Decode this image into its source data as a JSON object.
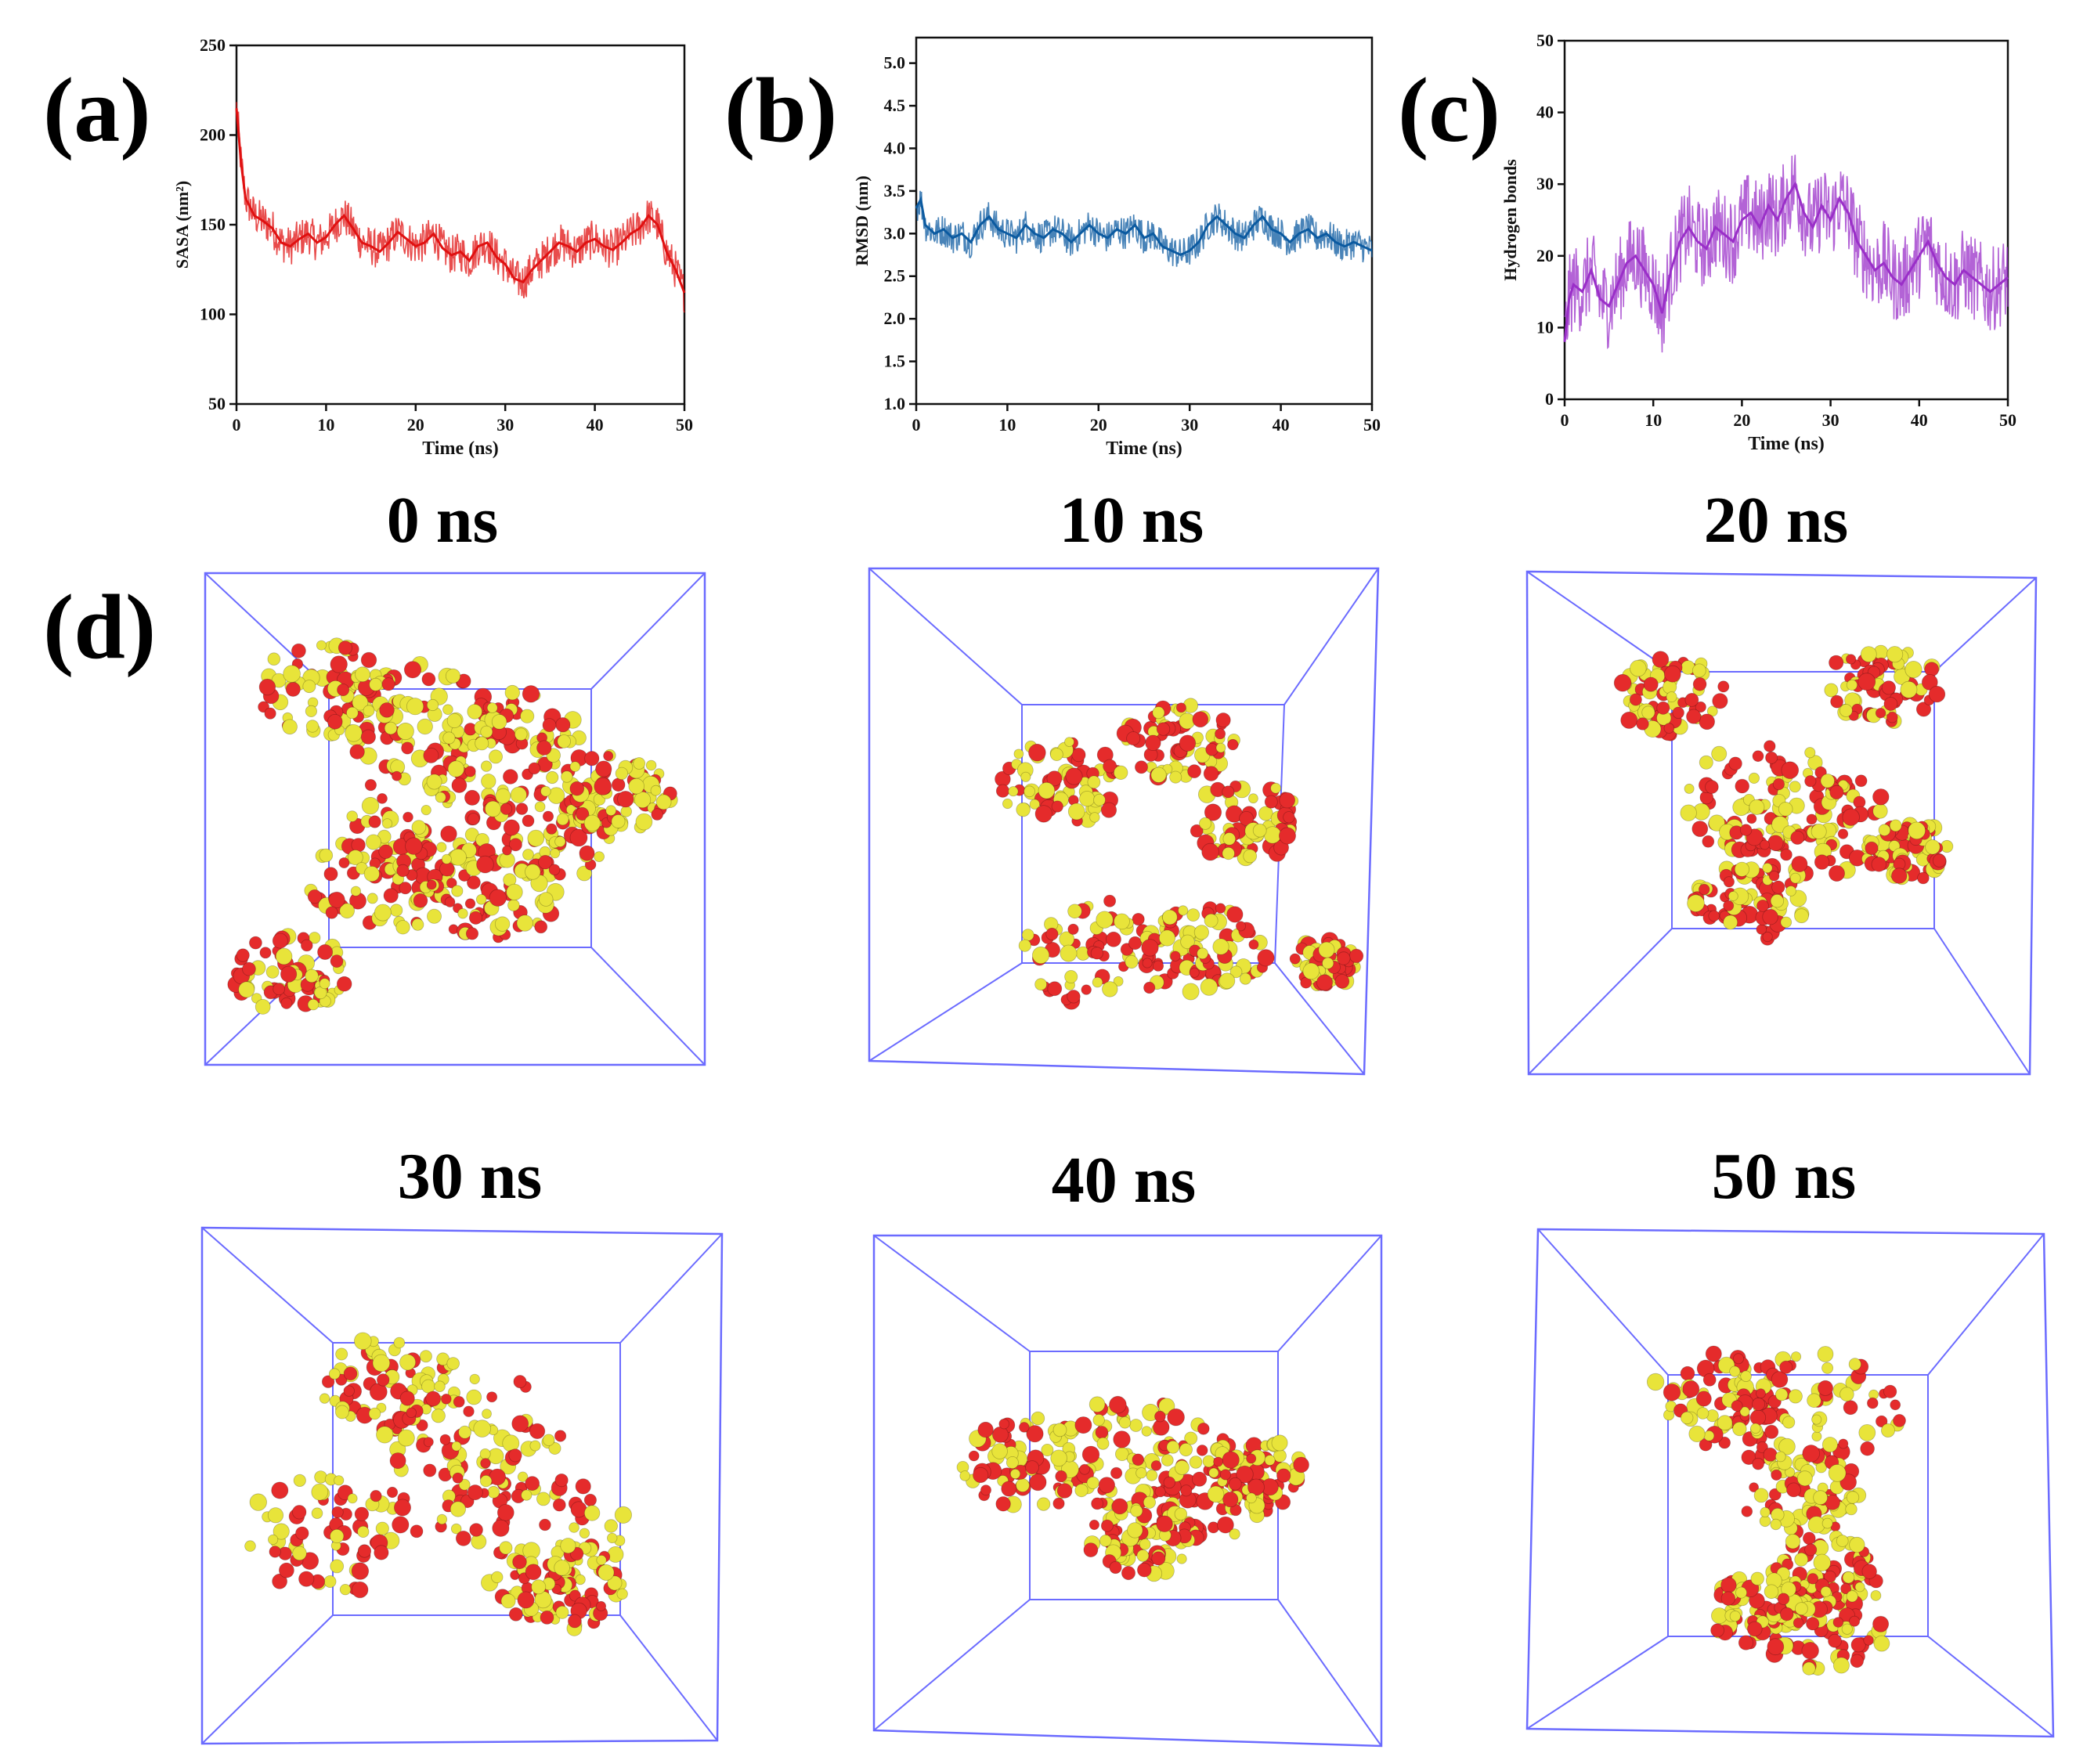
{
  "panel_labels": {
    "a": "(a)",
    "b": "(b)",
    "c": "(c)",
    "d": "(d)"
  },
  "colors": {
    "sasa": "#e01010",
    "rmsd": "#0b5aa0",
    "hbonds": "#9a2fc8",
    "molecule_red": "#e52b2b",
    "molecule_yellow": "#e8e43a",
    "box_edge": "#6b6bff"
  },
  "chart_data": [
    {
      "id": "a",
      "type": "line",
      "title": "",
      "xlabel": "Time (ns)",
      "ylabel": "SASA (nm²)",
      "xlim": [
        0,
        50
      ],
      "ylim": [
        50,
        250
      ],
      "xticks": [
        0,
        10,
        20,
        30,
        40,
        50
      ],
      "yticks": [
        50,
        100,
        150,
        200,
        250
      ],
      "grid": false,
      "series": [
        {
          "color": "#e01010",
          "x": [
            0,
            0.5,
            1,
            2,
            3,
            4,
            5,
            6,
            7,
            8,
            9,
            10,
            11,
            12,
            13,
            14,
            15,
            16,
            17,
            18,
            19,
            20,
            21,
            22,
            23,
            24,
            25,
            26,
            27,
            28,
            29,
            30,
            31,
            32,
            33,
            34,
            35,
            36,
            37,
            38,
            39,
            40,
            41,
            42,
            43,
            44,
            45,
            46,
            47,
            48,
            49,
            50
          ],
          "y": [
            215,
            185,
            165,
            155,
            152,
            148,
            140,
            138,
            142,
            145,
            140,
            143,
            150,
            155,
            148,
            140,
            138,
            135,
            140,
            146,
            142,
            138,
            140,
            145,
            137,
            133,
            135,
            130,
            138,
            140,
            132,
            128,
            120,
            118,
            125,
            130,
            135,
            140,
            138,
            135,
            140,
            142,
            138,
            136,
            140,
            145,
            148,
            155,
            150,
            135,
            125,
            112
          ]
        }
      ]
    },
    {
      "id": "b",
      "type": "line",
      "title": "",
      "xlabel": "Time (ns)",
      "ylabel": "RMSD (nm)",
      "xlim": [
        0,
        50
      ],
      "ylim": [
        1.0,
        5.3
      ],
      "xticks": [
        0,
        10,
        20,
        30,
        40,
        50
      ],
      "yticks": [
        1.0,
        1.5,
        2.0,
        2.5,
        3.0,
        3.5,
        4.0,
        4.5,
        5.0
      ],
      "grid": false,
      "series": [
        {
          "color": "#0b5aa0",
          "x": [
            0,
            0.5,
            1,
            2,
            3,
            4,
            5,
            6,
            7,
            8,
            9,
            10,
            11,
            12,
            13,
            14,
            15,
            16,
            17,
            18,
            19,
            20,
            21,
            22,
            23,
            24,
            25,
            26,
            27,
            28,
            29,
            30,
            31,
            32,
            33,
            34,
            35,
            36,
            37,
            38,
            39,
            40,
            41,
            42,
            43,
            44,
            45,
            46,
            47,
            48,
            49,
            50
          ],
          "y": [
            3.3,
            3.4,
            3.1,
            3.0,
            3.05,
            2.95,
            3.0,
            2.9,
            3.1,
            3.2,
            3.05,
            3.0,
            2.95,
            3.1,
            3.0,
            2.95,
            3.05,
            3.0,
            2.9,
            3.0,
            3.1,
            3.0,
            2.95,
            3.05,
            3.0,
            3.1,
            2.95,
            3.0,
            2.85,
            2.8,
            2.75,
            2.8,
            2.9,
            3.1,
            3.2,
            3.1,
            3.0,
            2.95,
            3.1,
            3.2,
            3.05,
            3.0,
            2.9,
            3.0,
            3.05,
            2.95,
            3.0,
            2.9,
            2.85,
            2.9,
            2.85,
            2.8
          ]
        }
      ]
    },
    {
      "id": "c",
      "type": "line",
      "title": "",
      "xlabel": "Time (ns)",
      "ylabel": "Hydrogen bonds",
      "xlim": [
        0,
        50
      ],
      "ylim": [
        0,
        50
      ],
      "xticks": [
        0,
        10,
        20,
        30,
        40,
        50
      ],
      "yticks": [
        0,
        10,
        20,
        30,
        40,
        50
      ],
      "grid": false,
      "series": [
        {
          "color": "#9a2fc8",
          "x": [
            0,
            0.5,
            1,
            2,
            3,
            4,
            5,
            6,
            7,
            8,
            9,
            10,
            11,
            12,
            13,
            14,
            15,
            16,
            17,
            18,
            19,
            20,
            21,
            22,
            23,
            24,
            25,
            26,
            27,
            28,
            29,
            30,
            31,
            32,
            33,
            34,
            35,
            36,
            37,
            38,
            39,
            40,
            41,
            42,
            43,
            44,
            45,
            46,
            47,
            48,
            49,
            50
          ],
          "y": [
            8,
            14,
            16,
            15,
            18,
            14,
            13,
            16,
            19,
            20,
            18,
            16,
            12,
            18,
            22,
            24,
            22,
            21,
            24,
            23,
            22,
            25,
            26,
            24,
            27,
            25,
            28,
            30,
            26,
            24,
            27,
            25,
            28,
            26,
            22,
            20,
            18,
            19,
            17,
            16,
            18,
            20,
            22,
            19,
            17,
            16,
            18,
            17,
            16,
            15,
            16,
            17
          ]
        }
      ]
    }
  ],
  "snapshots": [
    {
      "label": "0 ns"
    },
    {
      "label": "10 ns"
    },
    {
      "label": "20 ns"
    },
    {
      "label": "30 ns"
    },
    {
      "label": "40 ns"
    },
    {
      "label": "50 ns"
    }
  ]
}
